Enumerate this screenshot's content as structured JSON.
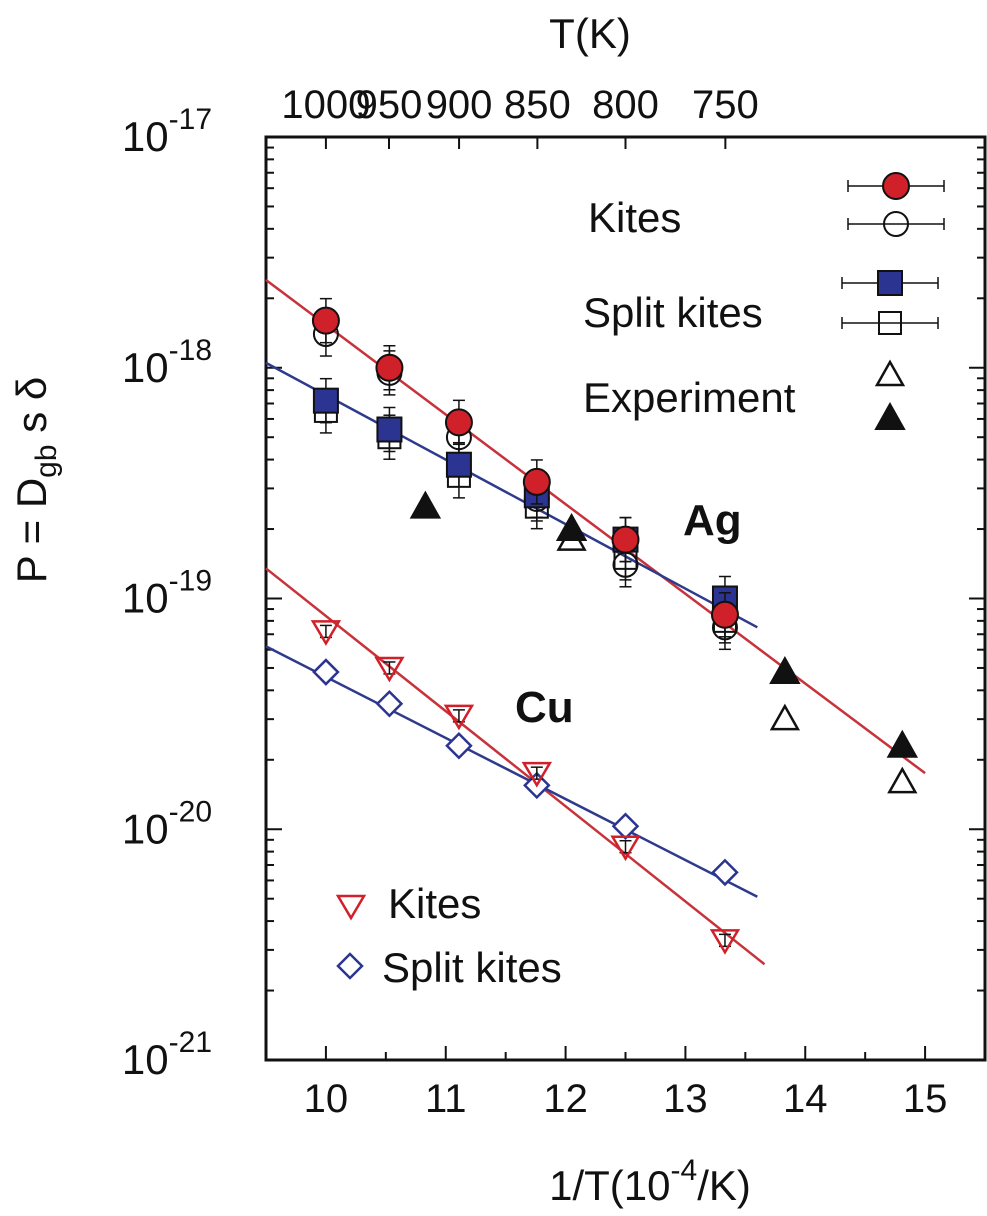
{
  "chart_data": {
    "type": "scatter",
    "top_axis_label": "T(K)",
    "top_axis_ticks": [
      "1000",
      "950",
      "900",
      "850",
      "800",
      "750"
    ],
    "xlabel_main": "1/T(10",
    "xlabel_sup": "-4",
    "xlabel_end": "/K)",
    "ylabel": "P = D",
    "ylabel_sub": "gb",
    "ylabel_end": " s δ",
    "xlim": [
      9.5,
      15.5
    ],
    "ylim": [
      1e-21,
      1e-17
    ],
    "y_scale": "log",
    "x_ticks": [
      10,
      11,
      12,
      13,
      14,
      15
    ],
    "y_tick_base": "10",
    "y_ticks": [
      {
        "value": 1e-17,
        "exp": "-17"
      },
      {
        "value": 1e-18,
        "exp": "-18"
      },
      {
        "value": 1e-19,
        "exp": "-19"
      },
      {
        "value": 1e-20,
        "exp": "-20"
      },
      {
        "value": 1e-21,
        "exp": "-21"
      }
    ],
    "annotations": {
      "ag": "Ag",
      "cu": "Cu"
    },
    "legend_top": {
      "kites": "Kites",
      "split_kites": "Split kites",
      "experiment": "Experiment"
    },
    "legend_bottom": {
      "kites": "Kites",
      "split_kites": "Split kites"
    },
    "colors": {
      "red": "#d0202a",
      "blue": "#2b3491",
      "black": "#111111",
      "line_red": "#c8323a",
      "line_blue": "#2e3a8c"
    },
    "series": [
      {
        "marker": "circle-filled-red",
        "x": [
          10.0,
          10.53,
          11.11,
          11.76,
          12.5,
          13.33
        ],
        "y": [
          1.6e-18,
          1e-18,
          5.8e-19,
          3.2e-19,
          1.8e-19,
          8.5e-20
        ]
      },
      {
        "marker": "circle-open",
        "x": [
          10.0,
          10.53,
          11.11,
          11.76,
          12.5,
          13.33
        ],
        "y": [
          1.4e-18,
          9.5e-19,
          5e-19,
          2.7e-19,
          1.4e-19,
          7.5e-20
        ]
      },
      {
        "marker": "square-filled-blue",
        "x": [
          10.0,
          10.53,
          11.11,
          11.76,
          12.5,
          13.33
        ],
        "y": [
          7.2e-19,
          5.4e-19,
          3.8e-19,
          2.8e-19,
          1.8e-19,
          1e-19
        ]
      },
      {
        "marker": "square-open",
        "x": [
          10.0,
          10.53,
          11.11,
          11.76,
          12.5,
          13.33
        ],
        "y": [
          6.5e-19,
          5e-19,
          3.4e-19,
          2.5e-19,
          1.5e-19,
          8e-20
        ]
      },
      {
        "marker": "triangle-up-filled",
        "x": [
          10.83,
          12.05,
          13.83,
          14.81
        ],
        "y": [
          2.5e-19,
          2e-19,
          4.8e-20,
          2.3e-20
        ]
      },
      {
        "marker": "triangle-up-open",
        "x": [
          12.05,
          13.83,
          14.81
        ],
        "y": [
          1.8e-19,
          3e-20,
          1.6e-20
        ]
      },
      {
        "marker": "triangle-down-open-red",
        "x": [
          10.0,
          10.53,
          11.11,
          11.76,
          12.5,
          13.33
        ],
        "y": [
          7.2e-20,
          5e-20,
          3.1e-20,
          1.75e-20,
          8.4e-21,
          3.3e-21
        ]
      },
      {
        "marker": "diamond-open-blue",
        "x": [
          10.0,
          10.53,
          11.11,
          11.76,
          12.5,
          13.33
        ],
        "y": [
          4.8e-20,
          3.5e-20,
          2.3e-20,
          1.55e-20,
          1.03e-20,
          6.5e-21
        ]
      }
    ],
    "fit_lines": [
      {
        "color": "line_red",
        "x": [
          9.5,
          15.0
        ],
        "y": [
          2.4e-18,
          1.75e-20
        ]
      },
      {
        "color": "line_blue",
        "x": [
          9.5,
          13.6
        ],
        "y": [
          1.05e-18,
          7.5e-20
        ]
      },
      {
        "color": "line_red",
        "x": [
          9.5,
          13.66
        ],
        "y": [
          1.35e-19,
          2.6e-21
        ]
      },
      {
        "color": "line_blue",
        "x": [
          9.5,
          13.6
        ],
        "y": [
          6.2e-20,
          5.1e-21
        ]
      }
    ]
  }
}
